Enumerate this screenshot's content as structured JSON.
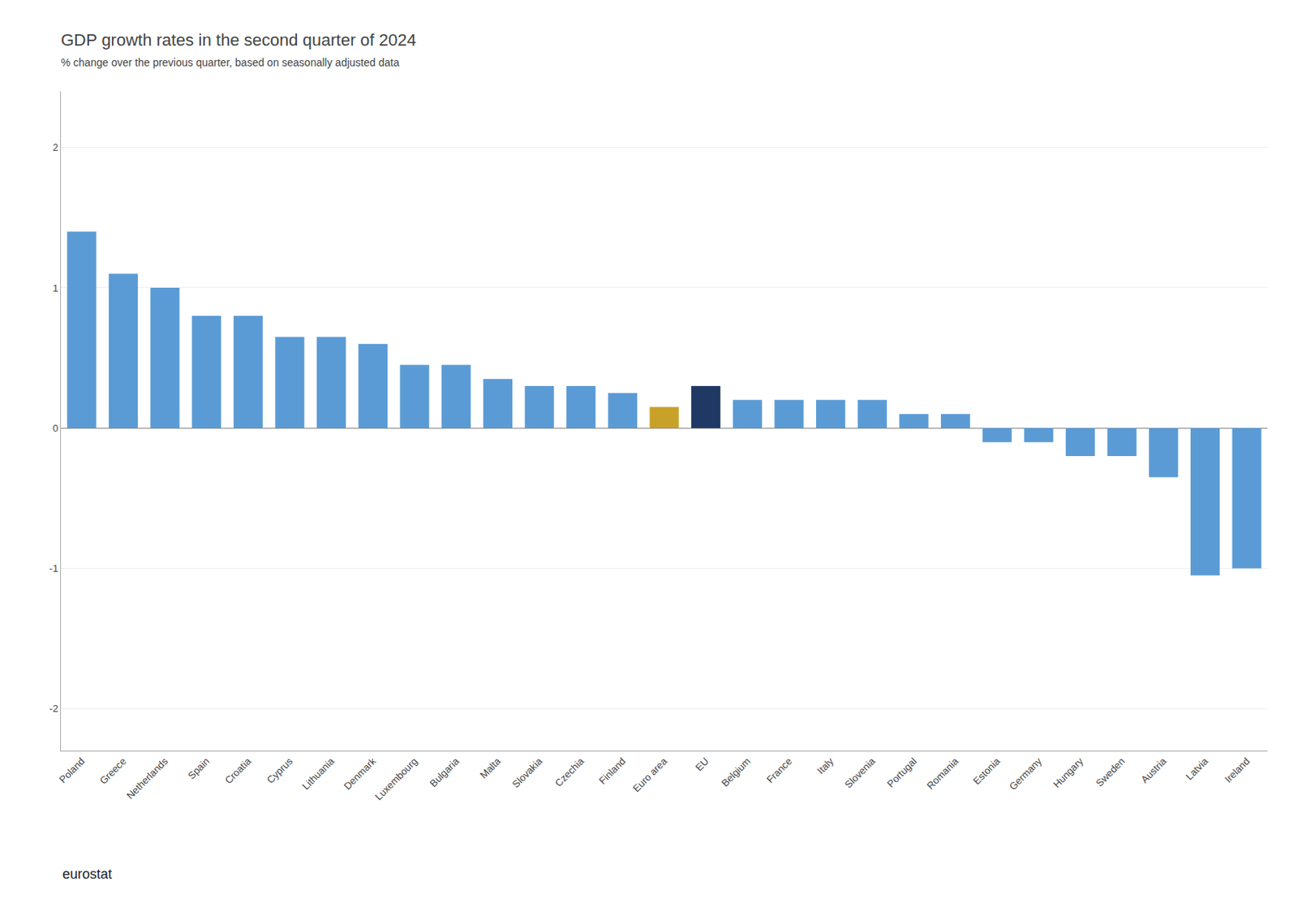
{
  "chart_data": {
    "type": "bar",
    "title": "GDP growth rates in the second quarter of 2024",
    "subtitle": "% change over the previous quarter, based on seasonally adjusted data",
    "categories": [
      "Poland",
      "Greece",
      "Netherlands",
      "Spain",
      "Croatia",
      "Cyprus",
      "Lithuania",
      "Denmark",
      "Luxembourg",
      "Bulgaria",
      "Malta",
      "Slovakia",
      "Czechia",
      "Finland",
      "Euro area",
      "EU",
      "Belgium",
      "France",
      "Italy",
      "Slovenia",
      "Portugal",
      "Romania",
      "Estonia",
      "Germany",
      "Hungary",
      "Sweden",
      "Austria",
      "Latvia",
      "Ireland"
    ],
    "values": [
      1.4,
      1.1,
      1.0,
      0.8,
      0.8,
      0.65,
      0.65,
      0.6,
      0.45,
      0.45,
      0.35,
      0.3,
      0.3,
      0.25,
      0.15,
      0.3,
      0.2,
      0.2,
      0.2,
      0.2,
      0.1,
      0.1,
      -0.1,
      -0.1,
      -0.2,
      -0.2,
      -0.35,
      -1.05,
      -1.0
    ],
    "colors": [
      "#5b9bd5",
      "#5b9bd5",
      "#5b9bd5",
      "#5b9bd5",
      "#5b9bd5",
      "#5b9bd5",
      "#5b9bd5",
      "#5b9bd5",
      "#5b9bd5",
      "#5b9bd5",
      "#5b9bd5",
      "#5b9bd5",
      "#5b9bd5",
      "#5b9bd5",
      "#c8a228",
      "#1f3864",
      "#5b9bd5",
      "#5b9bd5",
      "#5b9bd5",
      "#5b9bd5",
      "#5b9bd5",
      "#5b9bd5",
      "#5b9bd5",
      "#5b9bd5",
      "#5b9bd5",
      "#5b9bd5",
      "#5b9bd5",
      "#5b9bd5",
      "#5b9bd5"
    ],
    "ylim": [
      -2.3,
      2.4
    ],
    "yticks": [
      -2,
      -1,
      0,
      1,
      2
    ],
    "grid": true,
    "annotations": [
      "eurostat"
    ]
  }
}
